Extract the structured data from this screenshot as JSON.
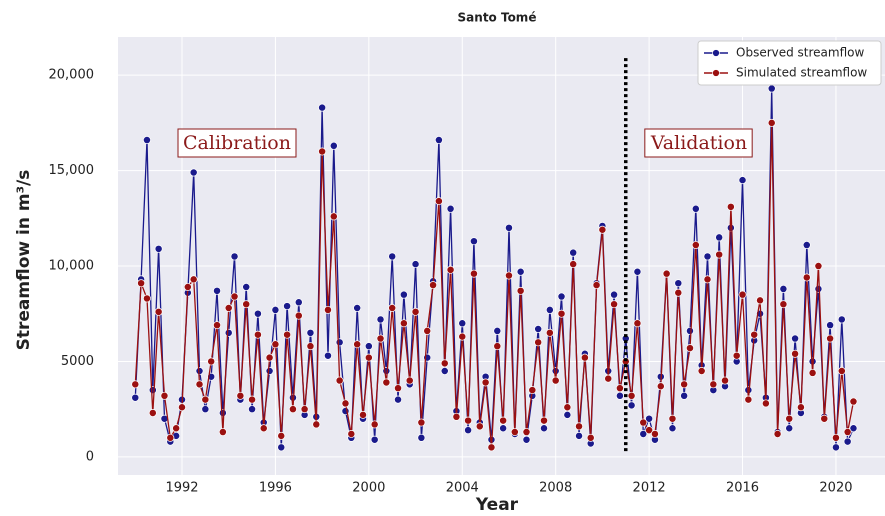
{
  "chart_data": {
    "type": "line",
    "title": "Santo Tomé",
    "x_label": "Year",
    "y_label": "Streamflow in m³/s",
    "x": [
      1990,
      1990.25,
      1990.5,
      1990.75,
      1991,
      1991.25,
      1991.5,
      1991.75,
      1992,
      1992.25,
      1992.5,
      1992.75,
      1993,
      1993.25,
      1993.5,
      1993.75,
      1994,
      1994.25,
      1994.5,
      1994.75,
      1995,
      1995.25,
      1995.5,
      1995.75,
      1996,
      1996.25,
      1996.5,
      1996.75,
      1997,
      1997.25,
      1997.5,
      1997.75,
      1998,
      1998.25,
      1998.5,
      1998.75,
      1999,
      1999.25,
      1999.5,
      1999.75,
      2000,
      2000.25,
      2000.5,
      2000.75,
      2001,
      2001.25,
      2001.5,
      2001.75,
      2002,
      2002.25,
      2002.5,
      2002.75,
      2003,
      2003.25,
      2003.5,
      2003.75,
      2004,
      2004.25,
      2004.5,
      2004.75,
      2005,
      2005.25,
      2005.5,
      2005.75,
      2006,
      2006.25,
      2006.5,
      2006.75,
      2007,
      2007.25,
      2007.5,
      2007.75,
      2008,
      2008.25,
      2008.5,
      2008.75,
      2009,
      2009.25,
      2009.5,
      2009.75,
      2010,
      2010.25,
      2010.5,
      2010.75,
      2011,
      2011.25,
      2011.5,
      2011.75,
      2012,
      2012.25,
      2012.5,
      2012.75,
      2013,
      2013.25,
      2013.5,
      2013.75,
      2014,
      2014.25,
      2014.5,
      2014.75,
      2015,
      2015.25,
      2015.5,
      2015.75,
      2016,
      2016.25,
      2016.5,
      2016.75,
      2017,
      2017.25,
      2017.5,
      2017.75,
      2018,
      2018.25,
      2018.5,
      2018.75,
      2019,
      2019.25,
      2019.5,
      2019.75,
      2020,
      2020.25,
      2020.5,
      2020.75
    ],
    "series": [
      {
        "name": "Observed streamflow",
        "color": "#1a1a8c",
        "values": [
          3100,
          9300,
          16600,
          3500,
          10900,
          2000,
          800,
          1100,
          3000,
          8600,
          14900,
          4500,
          2500,
          4200,
          8700,
          2300,
          6500,
          10500,
          3000,
          8900,
          2500,
          7500,
          1800,
          4500,
          7700,
          500,
          7900,
          3100,
          8100,
          2200,
          6500,
          2100,
          18300,
          5300,
          16300,
          6000,
          2400,
          1000,
          7800,
          2000,
          5800,
          900,
          7200,
          4500,
          10500,
          3000,
          8500,
          3800,
          10100,
          1000,
          5200,
          9200,
          16600,
          4500,
          13000,
          2400,
          7000,
          1400,
          11300,
          1800,
          4200,
          900,
          6600,
          1500,
          12000,
          1200,
          9700,
          900,
          3200,
          6700,
          1500,
          7700,
          4500,
          8400,
          2200,
          10700,
          1100,
          5400,
          700,
          9100,
          12100,
          4500,
          8500,
          3200,
          6200,
          2700,
          9700,
          1200,
          2000,
          900,
          4200,
          9600,
          1500,
          9100,
          3200,
          6600,
          13000,
          4800,
          10500,
          3500,
          11500,
          3700,
          12000,
          5000,
          14500,
          3500,
          6100,
          7500,
          3100,
          19300,
          1300,
          8800,
          1500,
          6200,
          2300,
          11100,
          5000,
          8800,
          2100,
          6900,
          500,
          7200,
          800,
          1500
        ]
      },
      {
        "name": "Simulated streamflow",
        "color": "#9b1010",
        "values": [
          3800,
          9100,
          8300,
          2300,
          7600,
          3200,
          1000,
          1500,
          2600,
          8900,
          9300,
          3800,
          3000,
          5000,
          6900,
          1300,
          7800,
          8400,
          3200,
          8000,
          3000,
          6400,
          1500,
          5200,
          5900,
          1100,
          6400,
          2500,
          7400,
          2500,
          5800,
          1700,
          16000,
          7700,
          12600,
          4000,
          2800,
          1200,
          5900,
          2200,
          5200,
          1700,
          6200,
          3900,
          7800,
          3600,
          7000,
          4000,
          7600,
          1800,
          6600,
          9000,
          13400,
          4900,
          9800,
          2100,
          6300,
          1900,
          9600,
          1600,
          3900,
          500,
          5800,
          1900,
          9500,
          1300,
          8700,
          1300,
          3500,
          6000,
          1900,
          6500,
          4000,
          7500,
          2600,
          10100,
          1600,
          5200,
          1000,
          9000,
          11900,
          4100,
          8000,
          3600,
          5000,
          3200,
          7000,
          1800,
          1400,
          1200,
          3700,
          9600,
          2000,
          8600,
          3800,
          5700,
          11100,
          4500,
          9300,
          3800,
          10600,
          4000,
          13100,
          5300,
          8500,
          3000,
          6400,
          8200,
          2800,
          17500,
          1200,
          8000,
          2000,
          5400,
          2600,
          9400,
          4400,
          10000,
          2000,
          6200,
          1000,
          4500,
          1300,
          2900
        ]
      }
    ],
    "xlim": [
      1989.26,
      2022.1
    ],
    "xticks": [
      1992,
      1996,
      2000,
      2004,
      2008,
      2012,
      2016,
      2020
    ],
    "ylim": [
      -950,
      22000
    ],
    "yticks": [
      0,
      5000,
      {
        "value": 10000,
        "label": "10,000"
      },
      {
        "value": 15000,
        "label": "15,000"
      },
      {
        "value": 20000,
        "label": "20,000"
      }
    ],
    "grid": true,
    "legend": "upper right",
    "annotations": [
      "Calibration",
      "Validation"
    ],
    "divider": {
      "x": 2011,
      "y": [
        300,
        21000
      ]
    }
  }
}
